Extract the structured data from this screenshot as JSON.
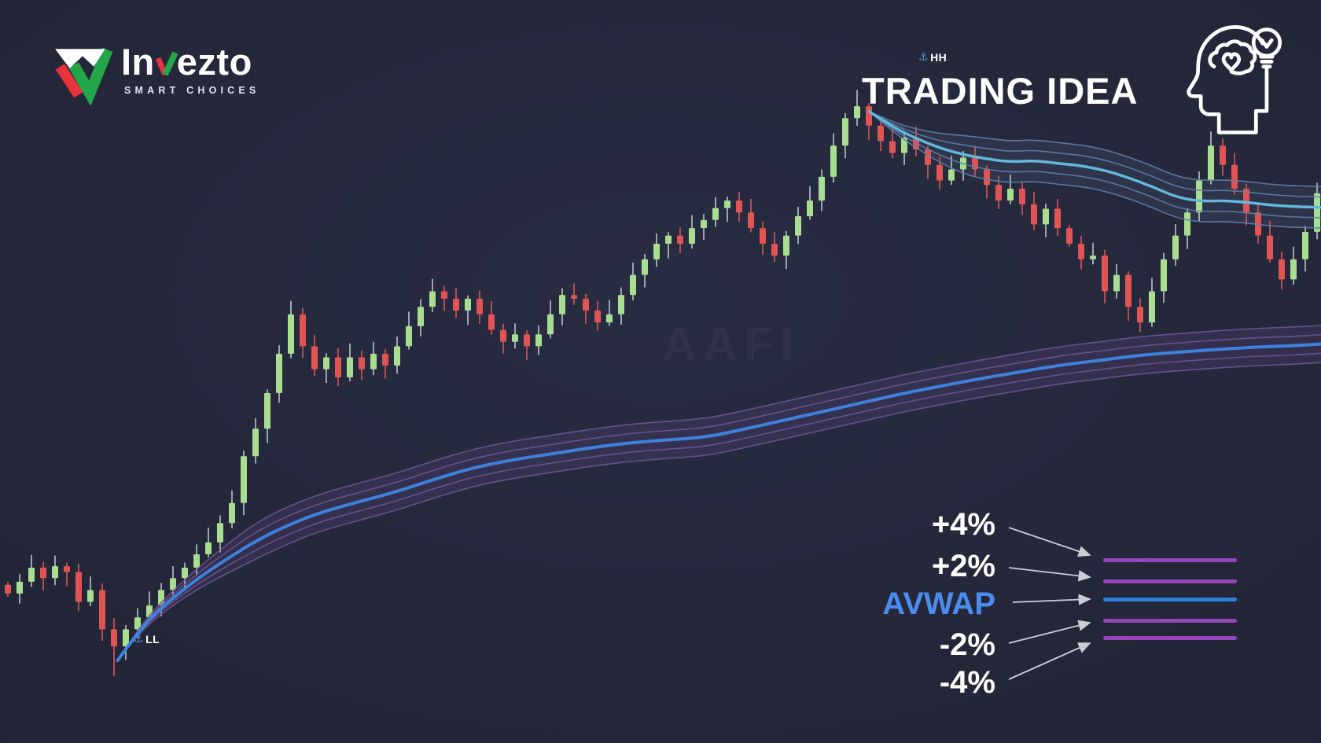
{
  "app": {
    "background": "#232637"
  },
  "logo": {
    "word_part1": "In",
    "word_part2": "ezto",
    "tagline": "SMART CHOICES",
    "check_green": "#23a549",
    "check_red": "#e8323c",
    "mark_white": "#ffffff"
  },
  "header": {
    "title": "TRADING IDEA"
  },
  "annotations": {
    "anchor_color": "#5b8fd4",
    "hh": {
      "icon": "⚓",
      "label": "HH"
    },
    "ll": {
      "icon": "⚓",
      "label": "LL"
    }
  },
  "watermark": {
    "text": "AAFI"
  },
  "legend": {
    "arrow_color": "#c9cdd6",
    "items": [
      {
        "label": "+4%",
        "line_color": "#9444bc"
      },
      {
        "label": "+2%",
        "line_color": "#9444bc"
      },
      {
        "label": "AVWAP",
        "line_color": "#2e7fdb",
        "text_color": "#4a8cf0"
      },
      {
        "label": "-2%",
        "line_color": "#9444bc"
      },
      {
        "label": "-4%",
        "line_color": "#9444bc"
      }
    ]
  },
  "chart_data": {
    "type": "candlestick",
    "bars": 112,
    "x_unit": "bars",
    "value_scale": "normalized 0-100 (no price axis shown in image)",
    "grid": false,
    "closes": [
      20.1,
      21.7,
      23.6,
      22.2,
      23.8,
      23.0,
      19.0,
      20.6,
      15.3,
      13.0,
      15.3,
      16.9,
      18.5,
      20.6,
      22.2,
      23.6,
      25.4,
      27.0,
      29.6,
      32.3,
      38.6,
      42.3,
      47.1,
      52.4,
      57.7,
      53.4,
      50.3,
      51.9,
      49.2,
      51.9,
      50.3,
      52.4,
      50.8,
      53.4,
      56.1,
      58.7,
      60.8,
      59.8,
      58.2,
      59.8,
      57.7,
      55.6,
      54.0,
      55.0,
      53.4,
      55.0,
      57.7,
      60.3,
      59.8,
      58.2,
      56.6,
      57.7,
      60.3,
      63.0,
      65.1,
      67.2,
      68.3,
      67.2,
      69.3,
      70.4,
      72.0,
      73.0,
      71.4,
      69.3,
      67.2,
      65.6,
      68.3,
      70.9,
      73.0,
      76.2,
      80.4,
      84.1,
      85.7,
      83.1,
      81.0,
      79.4,
      81.5,
      79.9,
      77.8,
      75.7,
      77.2,
      78.8,
      77.2,
      75.1,
      73.0,
      74.6,
      72.5,
      69.8,
      71.9,
      69.3,
      67.2,
      65.1,
      65.6,
      60.8,
      63.0,
      58.7,
      56.6,
      60.8,
      65.1,
      68.3,
      71.4,
      75.7,
      80.4,
      77.8,
      74.6,
      71.4,
      68.3,
      65.1,
      62.4,
      65.1,
      68.8,
      74.0
    ],
    "anchor_points": {
      "hh_index": 72,
      "hh_wick_high": 87.9,
      "ll_index": 9,
      "ll_wick_low": 9.0
    },
    "candle_up_color": "#a9de90",
    "candle_down_color": "#e05454",
    "wick_up_color": "#b9c3cd",
    "wick_down_color": "#d9565e",
    "avwap_ll": {
      "name": "AVWAP anchored at LL",
      "center_color": "#3f82dc",
      "band_line_color": "#6b5694",
      "band_fill_color": "rgba(122,84,168,0.18)",
      "band_labels": [
        "+2%",
        "+4%",
        "-2%",
        "-4%"
      ],
      "band_offsets_units": [
        1.25,
        2.5
      ],
      "points": [
        [
          8.9,
          11.1
        ],
        [
          10.4,
          14.8
        ],
        [
          11.9,
          17.7
        ],
        [
          13.7,
          20.4
        ],
        [
          15.5,
          22.8
        ],
        [
          17.3,
          24.9
        ],
        [
          19.0,
          26.8
        ],
        [
          20.8,
          28.5
        ],
        [
          22.6,
          29.9
        ],
        [
          24.4,
          31.1
        ],
        [
          26.8,
          32.3
        ],
        [
          29.8,
          33.7
        ],
        [
          32.7,
          35.4
        ],
        [
          35.7,
          37.0
        ],
        [
          38.7,
          38.1
        ],
        [
          41.7,
          38.9
        ],
        [
          44.6,
          39.7
        ],
        [
          47.6,
          40.4
        ],
        [
          50.6,
          40.8
        ],
        [
          53.6,
          41.2
        ],
        [
          56.5,
          42.3
        ],
        [
          59.5,
          43.5
        ],
        [
          62.5,
          44.7
        ],
        [
          65.5,
          45.9
        ],
        [
          68.5,
          47.1
        ],
        [
          71.4,
          48.1
        ],
        [
          74.4,
          49.1
        ],
        [
          77.4,
          50.0
        ],
        [
          80.4,
          50.9
        ],
        [
          83.3,
          51.5
        ],
        [
          86.3,
          52.2
        ],
        [
          89.3,
          52.6
        ],
        [
          92.3,
          53.0
        ],
        [
          95.2,
          53.3
        ],
        [
          98.2,
          53.5
        ],
        [
          100,
          53.7
        ]
      ]
    },
    "avwap_hh": {
      "name": "AVWAP anchored at HH",
      "center_color": "#62b8dc",
      "band_line_color": "#5f7fa8",
      "band_fill_color": "rgba(130,170,210,0.10)",
      "band_labels": [
        "+2%",
        "+4%",
        "-2%",
        "-4%"
      ],
      "band_offsets_units": [
        1.4,
        2.8
      ],
      "points": [
        [
          65.8,
          85.0
        ],
        [
          67.6,
          82.9
        ],
        [
          69.3,
          81.4
        ],
        [
          71.1,
          80.1
        ],
        [
          72.9,
          79.2
        ],
        [
          74.7,
          78.6
        ],
        [
          76.5,
          78.2
        ],
        [
          78.3,
          78.4
        ],
        [
          80.1,
          78.0
        ],
        [
          81.8,
          77.7
        ],
        [
          83.6,
          77.1
        ],
        [
          85.4,
          76.1
        ],
        [
          87.2,
          74.9
        ],
        [
          89.0,
          73.5
        ],
        [
          90.8,
          72.9
        ],
        [
          92.6,
          73.0
        ],
        [
          94.3,
          72.8
        ],
        [
          96.1,
          72.4
        ],
        [
          97.9,
          72.2
        ],
        [
          100,
          72.1
        ]
      ]
    }
  }
}
